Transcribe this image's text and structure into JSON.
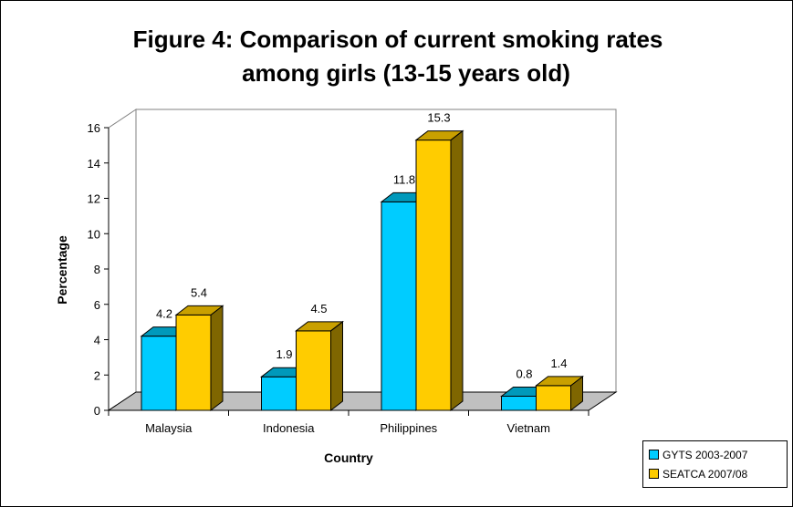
{
  "chart_data": {
    "type": "bar",
    "title": [
      "Figure 4: Comparison of current smoking rates",
      "among girls (13-15 years old)"
    ],
    "xlabel": "Country",
    "ylabel": "Percentage",
    "categories": [
      "Malaysia",
      "Indonesia",
      "Philippines",
      "Vietnam"
    ],
    "ylim": [
      0,
      16
    ],
    "yticks": [
      "0",
      "2",
      "4",
      "6",
      "8",
      "10",
      "12",
      "14",
      "16"
    ],
    "series": [
      {
        "name": "GYTS 2003-2007",
        "values": [
          4.2,
          1.9,
          11.8,
          0.8
        ],
        "labels": [
          "4.2",
          "1.9",
          "11.8",
          "0.8"
        ],
        "color": "#00ccff",
        "side_color": "#00889e",
        "top_color": "#0099bb"
      },
      {
        "name": "SEATCA 2007/08",
        "values": [
          5.4,
          4.5,
          15.3,
          1.4
        ],
        "labels": [
          "5.4",
          "4.5",
          "15.3",
          "1.4"
        ],
        "color": "#ffcc00",
        "side_color": "#7f6600",
        "top_color": "#c9a000"
      }
    ],
    "grid": false,
    "legend_position": "bottom-right",
    "floor_color": "#c0c0c0"
  }
}
